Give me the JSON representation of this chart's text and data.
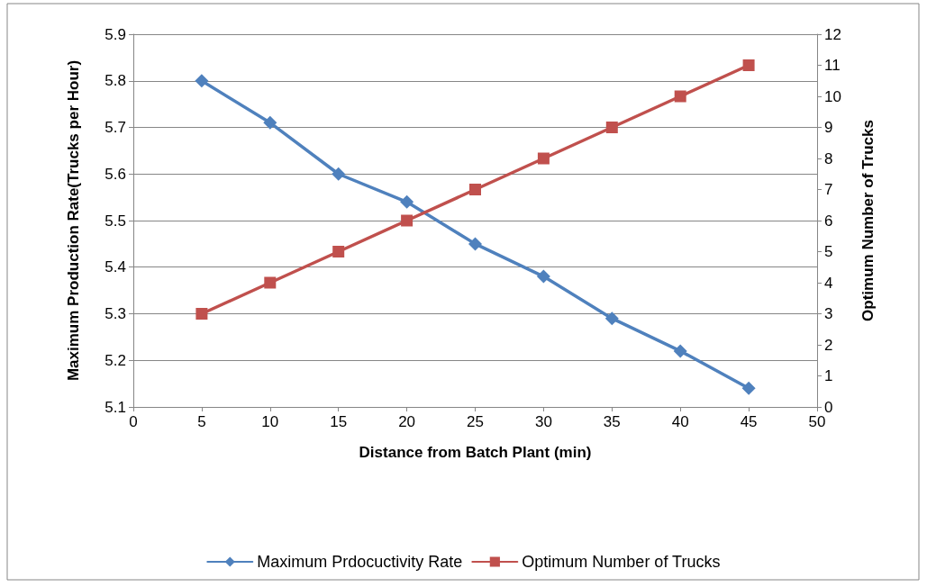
{
  "chart_data": {
    "type": "line",
    "xlabel": "Distance from Batch Plant (min)",
    "ylabel": "Maximum Production Rate(Trucks per Hour)",
    "y2label": "Optimum Number of Trucks",
    "x": [
      5,
      10,
      15,
      20,
      25,
      30,
      35,
      40,
      45
    ],
    "xlim": [
      0,
      50
    ],
    "xticks": [
      0,
      5,
      10,
      15,
      20,
      25,
      30,
      35,
      40,
      45,
      50
    ],
    "ylim": [
      5.1,
      5.9
    ],
    "yticks": [
      5.1,
      5.2,
      5.3,
      5.4,
      5.5,
      5.6,
      5.7,
      5.8,
      5.9
    ],
    "y2lim": [
      0,
      12
    ],
    "y2ticks": [
      0,
      1,
      2,
      3,
      4,
      5,
      6,
      7,
      8,
      9,
      10,
      11,
      12
    ],
    "series": [
      {
        "name": "Maximum Prdocuctivity Rate",
        "color": "#4f81bd",
        "marker": "diamond",
        "values": [
          5.8,
          5.71,
          5.6,
          5.54,
          5.45,
          5.38,
          5.29,
          5.22,
          5.14
        ]
      },
      {
        "name": "Optimum Number of Trucks",
        "color": "#c0504d",
        "marker": "square",
        "axis": "y2",
        "values": [
          3,
          4,
          5,
          6,
          7,
          8,
          9,
          10,
          11
        ]
      }
    ],
    "grid": "y",
    "legend": "bottom",
    "line_style": "solid"
  }
}
